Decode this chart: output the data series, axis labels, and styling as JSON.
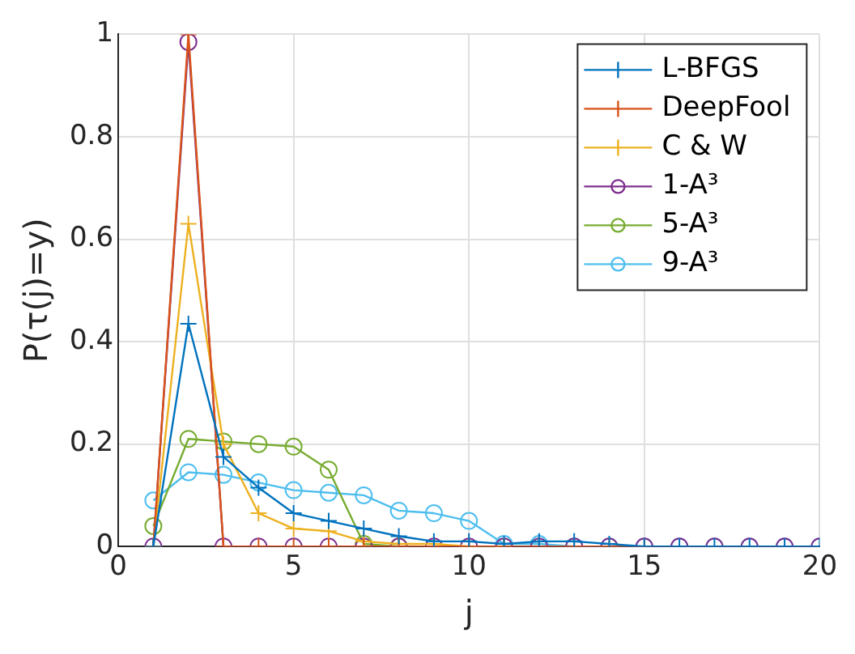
{
  "chart_data": {
    "type": "line",
    "xlabel": "j",
    "ylabel": "P(τ(j)=y)",
    "x": [
      1,
      2,
      3,
      4,
      5,
      6,
      7,
      8,
      9,
      10,
      11,
      12,
      13,
      14,
      15,
      16,
      17,
      18,
      19,
      20
    ],
    "series": [
      {
        "name": "L-BFGS",
        "color": "#0072bd",
        "marker": "cross",
        "values": [
          0,
          0.435,
          0.175,
          0.115,
          0.065,
          0.05,
          0.035,
          0.02,
          0.01,
          0.01,
          0.005,
          0.01,
          0.01,
          0.005,
          0,
          0,
          0,
          0,
          0,
          0
        ]
      },
      {
        "name": "DeepFool",
        "color": "#d95319",
        "marker": "cross",
        "values": [
          0,
          1,
          0,
          0,
          0,
          0,
          0,
          0,
          0,
          0,
          0,
          0,
          0,
          0,
          0,
          null,
          null,
          null,
          null,
          null
        ]
      },
      {
        "name": "C & W",
        "color": "#edb120",
        "marker": "cross",
        "values": [
          0,
          0.63,
          0.2,
          0.065,
          0.035,
          0.03,
          0.01,
          0.005,
          0.005,
          0,
          0,
          null,
          null,
          null,
          null,
          null,
          null,
          null,
          null,
          null
        ]
      },
      {
        "name": "1-A³",
        "color": "#7e2f8e",
        "marker": "circle",
        "values": [
          0,
          0.985,
          0,
          0,
          0,
          0,
          0,
          0,
          0,
          0,
          0,
          0,
          0,
          0,
          0,
          0,
          0,
          0,
          0,
          0
        ]
      },
      {
        "name": "5-A³",
        "color": "#77ac30",
        "marker": "circle",
        "values": [
          0.04,
          0.21,
          0.205,
          0.2,
          0.195,
          0.15,
          0.005,
          0,
          null,
          null,
          null,
          null,
          null,
          null,
          null,
          null,
          null,
          null,
          null,
          null
        ]
      },
      {
        "name": "9-A³",
        "color": "#4dbeee",
        "marker": "circle",
        "values": [
          0.09,
          0.145,
          0.14,
          0.125,
          0.11,
          0.105,
          0.1,
          0.07,
          0.065,
          0.05,
          0.005,
          0.005,
          0,
          0,
          0,
          0,
          0,
          0,
          0,
          0
        ]
      }
    ],
    "xlim": [
      0,
      20
    ],
    "xticks": [
      0,
      5,
      10,
      15,
      20
    ],
    "ylim": [
      0,
      1
    ],
    "yticks": [
      0,
      0.2,
      0.4,
      0.6,
      0.8,
      1
    ],
    "grid": true,
    "legend": "top right",
    "line_style": "solid"
  }
}
